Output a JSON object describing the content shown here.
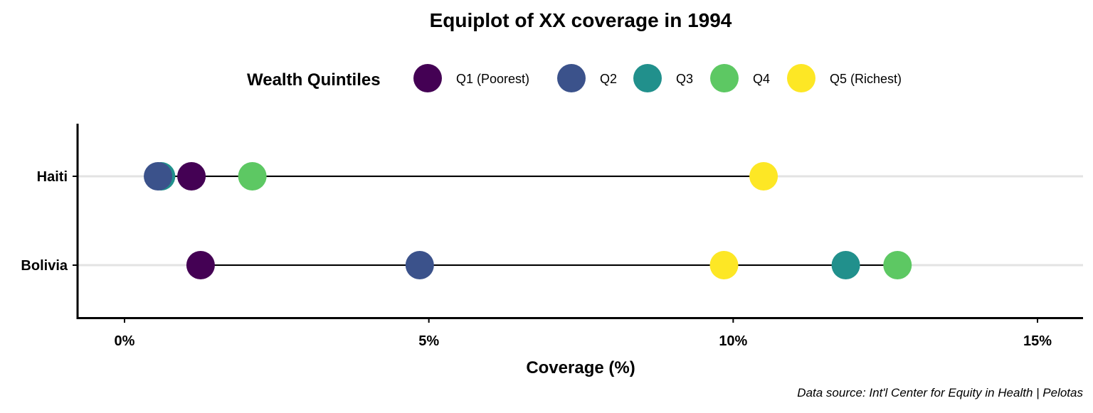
{
  "chart_data": {
    "type": "scatter",
    "title": "Equiplot of XX coverage in 1994",
    "xlabel": "Coverage (%)",
    "ylabel": "",
    "xlim": [
      -0.75,
      15.8
    ],
    "x_ticks": [
      0,
      5,
      10,
      15
    ],
    "x_tick_labels": [
      "0%",
      "5%",
      "10%",
      "15%"
    ],
    "categories": [
      "Haiti",
      "Bolivia"
    ],
    "legend": {
      "title": "Wealth Quintiles",
      "position": "top"
    },
    "grid": "horizontal major only",
    "caption": "Data source: Int'l Center for Equity in Health | Pelotas",
    "series": [
      {
        "name": "Q1 (Poorest)",
        "color": "#440154",
        "values": [
          1.1,
          1.25
        ]
      },
      {
        "name": "Q2",
        "color": "#3B528B",
        "values": [
          0.55,
          4.85
        ]
      },
      {
        "name": "Q3",
        "color": "#21908C",
        "values": [
          0.6,
          11.85
        ]
      },
      {
        "name": "Q4",
        "color": "#5DC863",
        "values": [
          2.1,
          12.7
        ]
      },
      {
        "name": "Q5 (Richest)",
        "color": "#FDE725",
        "values": [
          10.5,
          9.85
        ]
      }
    ]
  }
}
